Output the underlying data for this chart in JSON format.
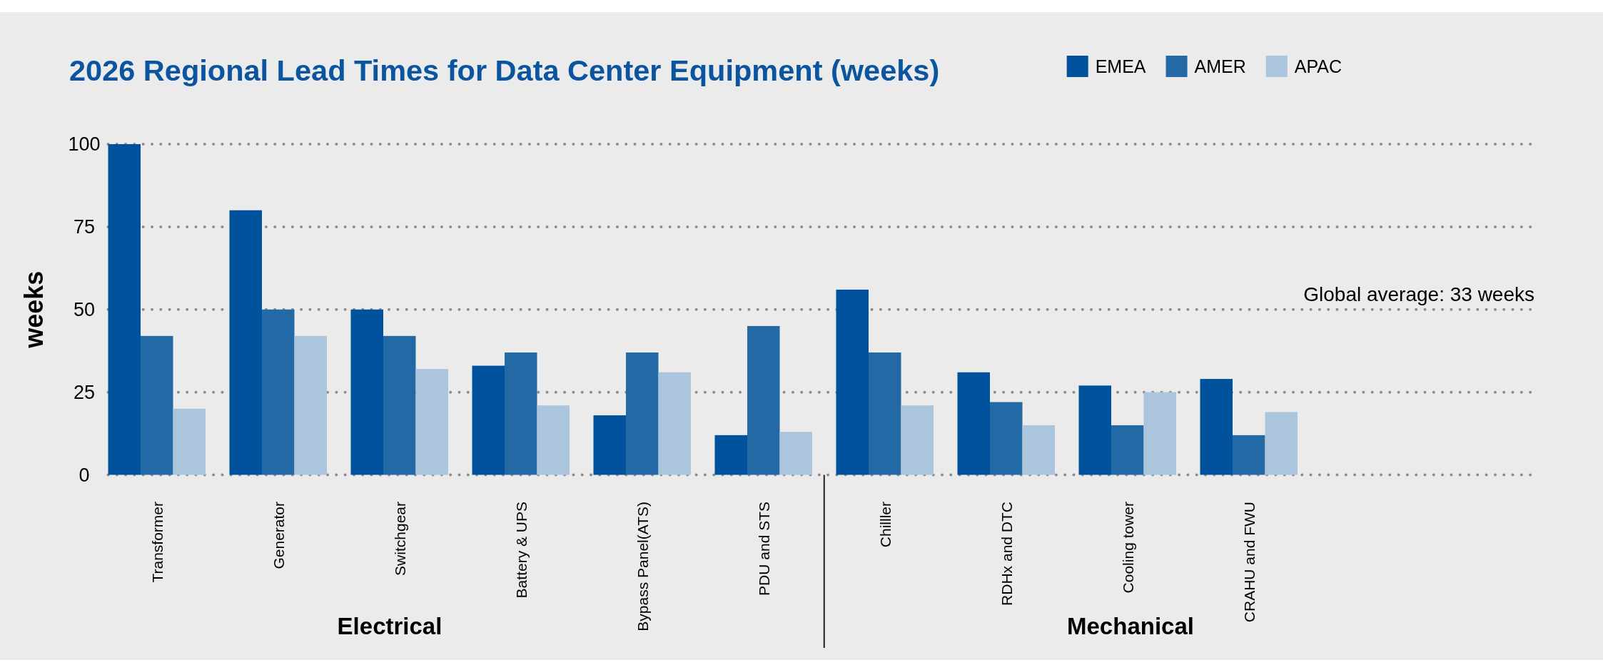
{
  "chart_data": {
    "type": "bar",
    "title": "2026 Regional Lead Times for Data Center Equipment (weeks)",
    "ylabel": "weeks",
    "categories": [
      "Transformer",
      "Generator",
      "Switchgear",
      "Battery & UPS",
      "Bypass Panel(ATS)",
      "PDU and STS",
      "Chilller",
      "RDHx and DTC",
      "Cooling tower",
      "CRAHU and FWU"
    ],
    "series": [
      {
        "name": "EMEA",
        "color": "#00529c",
        "values": [
          100,
          80,
          50,
          33,
          18,
          12,
          56,
          31,
          27,
          29
        ]
      },
      {
        "name": "AMER",
        "color": "#2269a5",
        "values": [
          42,
          50,
          42,
          37,
          37,
          45,
          37,
          22,
          15,
          12
        ]
      },
      {
        "name": "APAC",
        "color": "#abc5dd",
        "values": [
          20,
          42,
          32,
          21,
          31,
          13,
          21,
          15,
          25,
          19
        ]
      }
    ],
    "ylim": [
      0,
      100
    ],
    "yticks": [
      0,
      25,
      50,
      75,
      100
    ],
    "grid": "y",
    "legend": "top right",
    "annotations": [
      "Global average: 33 weeks",
      "Electrical",
      "Mechanical"
    ]
  }
}
